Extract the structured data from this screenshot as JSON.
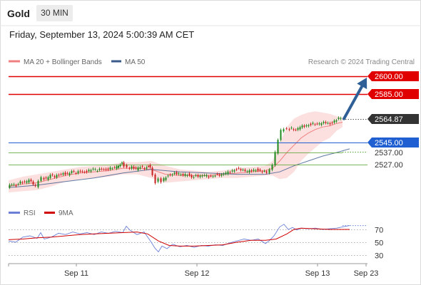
{
  "header": {
    "title": "Gold",
    "timeframe": "30 MIN",
    "datetime": "Friday, September 13, 2024 5:00:39 AM CET"
  },
  "legend": {
    "ma20": "MA 20 + Bollinger Bands",
    "ma50": "MA 50",
    "copyright": "Research © 2024 Trading Central",
    "colors": {
      "ma20": "#f08080",
      "ma50": "#3a5a8c"
    }
  },
  "rsi_legend": {
    "rsi": "RSI",
    "ma9": "9MA",
    "colors": {
      "rsi": "#6b7fd6",
      "ma9": "#d00000"
    }
  },
  "colors": {
    "resistance": "#e00000",
    "support": "#1f5fd1",
    "support_secondary": "#5aa632",
    "last_price": "#333333",
    "up_candle": "#1e8a1e",
    "down_candle": "#c81e1e",
    "bollinger_fill": "#fbd9d9",
    "arrow": "#2e5f96"
  },
  "chart_data": [
    {
      "type": "candlestick",
      "title": "Gold",
      "timeframe": "30 MIN",
      "x_ticks": [
        "Sep 11",
        "Sep 12",
        "Sep 13",
        "Sep 23"
      ],
      "y_range": [
        2505,
        2605
      ],
      "levels": [
        {
          "name": "resistance-2",
          "value": 2600.0,
          "label": "2600.00",
          "color": "#e00000"
        },
        {
          "name": "resistance-1",
          "value": 2585.0,
          "label": "2585.00",
          "color": "#e00000"
        },
        {
          "name": "last-price",
          "value": 2564.87,
          "label": "2564.87",
          "color": "#333333"
        },
        {
          "name": "pivot",
          "value": 2545.0,
          "label": "2545.00",
          "color": "#1f5fd1"
        },
        {
          "name": "support-1",
          "value": 2537.0,
          "label": "2537.00",
          "color": "#5aa632"
        },
        {
          "name": "support-2",
          "value": 2527.0,
          "label": "2527.00",
          "color": "#5aa632"
        }
      ],
      "price_path": [
        [
          0,
          2508
        ],
        [
          6,
          2511
        ],
        [
          12,
          2510
        ],
        [
          18,
          2513
        ],
        [
          24,
          2512
        ],
        [
          30,
          2514
        ],
        [
          36,
          2511
        ],
        [
          40,
          2509
        ],
        [
          44,
          2514
        ],
        [
          48,
          2516
        ],
        [
          54,
          2515
        ],
        [
          60,
          2518
        ],
        [
          66,
          2517
        ],
        [
          72,
          2519
        ],
        [
          78,
          2520
        ],
        [
          84,
          2519
        ],
        [
          90,
          2521
        ],
        [
          96,
          2520
        ],
        [
          102,
          2522
        ],
        [
          108,
          2521
        ],
        [
          114,
          2522
        ],
        [
          120,
          2523
        ],
        [
          126,
          2522
        ],
        [
          132,
          2524
        ],
        [
          138,
          2523
        ],
        [
          144,
          2524
        ],
        [
          150,
          2524
        ],
        [
          155,
          2526
        ],
        [
          160,
          2528
        ],
        [
          164,
          2526
        ],
        [
          168,
          2524
        ],
        [
          174,
          2525
        ],
        [
          180,
          2523
        ],
        [
          186,
          2525
        ],
        [
          192,
          2524
        ],
        [
          197,
          2526
        ],
        [
          200,
          2524
        ],
        [
          204,
          2518
        ],
        [
          208,
          2512
        ],
        [
          212,
          2515
        ],
        [
          216,
          2513
        ],
        [
          222,
          2517
        ],
        [
          228,
          2519
        ],
        [
          234,
          2520
        ],
        [
          240,
          2519
        ],
        [
          246,
          2518
        ],
        [
          252,
          2519
        ],
        [
          258,
          2517
        ],
        [
          264,
          2518
        ],
        [
          270,
          2517
        ],
        [
          276,
          2518
        ],
        [
          282,
          2517
        ],
        [
          288,
          2518
        ],
        [
          294,
          2519
        ],
        [
          300,
          2518
        ],
        [
          306,
          2520
        ],
        [
          312,
          2521
        ],
        [
          318,
          2523
        ],
        [
          324,
          2524
        ],
        [
          330,
          2522
        ],
        [
          336,
          2521
        ],
        [
          342,
          2522
        ],
        [
          348,
          2523
        ],
        [
          354,
          2522
        ],
        [
          360,
          2521
        ],
        [
          364,
          2520
        ],
        [
          368,
          2523
        ],
        [
          372,
          2527
        ],
        [
          376,
          2537
        ],
        [
          380,
          2548
        ],
        [
          384,
          2555
        ],
        [
          388,
          2557
        ],
        [
          392,
          2556
        ],
        [
          398,
          2557
        ],
        [
          404,
          2555
        ],
        [
          410,
          2558
        ],
        [
          416,
          2559
        ],
        [
          422,
          2560
        ],
        [
          428,
          2561
        ],
        [
          434,
          2560
        ],
        [
          440,
          2561
        ],
        [
          446,
          2562
        ],
        [
          452,
          2561
        ],
        [
          458,
          2563
        ],
        [
          464,
          2565
        ],
        [
          468,
          2564.87
        ]
      ],
      "ma20_path": [
        [
          0,
          2509
        ],
        [
          20,
          2511
        ],
        [
          40,
          2512
        ],
        [
          60,
          2515
        ],
        [
          80,
          2518
        ],
        [
          100,
          2520
        ],
        [
          120,
          2521
        ],
        [
          140,
          2522
        ],
        [
          160,
          2524
        ],
        [
          180,
          2524
        ],
        [
          200,
          2523
        ],
        [
          220,
          2519
        ],
        [
          240,
          2518
        ],
        [
          260,
          2518
        ],
        [
          280,
          2518
        ],
        [
          300,
          2519
        ],
        [
          320,
          2520
        ],
        [
          340,
          2521
        ],
        [
          360,
          2522
        ],
        [
          370,
          2524
        ],
        [
          380,
          2530
        ],
        [
          390,
          2537
        ],
        [
          400,
          2543
        ],
        [
          410,
          2549
        ],
        [
          420,
          2553
        ],
        [
          430,
          2556
        ],
        [
          440,
          2558
        ],
        [
          450,
          2559
        ],
        [
          460,
          2561
        ],
        [
          468,
          2562
        ]
      ],
      "bb_upper": [
        [
          0,
          2514
        ],
        [
          20,
          2517
        ],
        [
          40,
          2519
        ],
        [
          60,
          2521
        ],
        [
          80,
          2523
        ],
        [
          100,
          2525
        ],
        [
          120,
          2526
        ],
        [
          140,
          2527
        ],
        [
          160,
          2529
        ],
        [
          180,
          2529
        ],
        [
          200,
          2530
        ],
        [
          220,
          2526
        ],
        [
          240,
          2523
        ],
        [
          260,
          2522
        ],
        [
          280,
          2521
        ],
        [
          300,
          2522
        ],
        [
          320,
          2524
        ],
        [
          340,
          2525
        ],
        [
          360,
          2526
        ],
        [
          370,
          2530
        ],
        [
          380,
          2545
        ],
        [
          390,
          2558
        ],
        [
          400,
          2565
        ],
        [
          410,
          2568
        ],
        [
          420,
          2570
        ],
        [
          430,
          2571
        ],
        [
          440,
          2570
        ],
        [
          450,
          2569
        ],
        [
          460,
          2567
        ],
        [
          468,
          2566
        ]
      ],
      "bb_lower": [
        [
          0,
          2504
        ],
        [
          20,
          2505
        ],
        [
          40,
          2506
        ],
        [
          60,
          2509
        ],
        [
          80,
          2513
        ],
        [
          100,
          2515
        ],
        [
          120,
          2516
        ],
        [
          140,
          2517
        ],
        [
          160,
          2519
        ],
        [
          180,
          2519
        ],
        [
          200,
          2516
        ],
        [
          220,
          2512
        ],
        [
          240,
          2513
        ],
        [
          260,
          2514
        ],
        [
          280,
          2515
        ],
        [
          300,
          2516
        ],
        [
          320,
          2516
        ],
        [
          340,
          2517
        ],
        [
          360,
          2518
        ],
        [
          370,
          2518
        ],
        [
          380,
          2515
        ],
        [
          390,
          2516
        ],
        [
          400,
          2521
        ],
        [
          410,
          2530
        ],
        [
          420,
          2536
        ],
        [
          430,
          2541
        ],
        [
          440,
          2546
        ],
        [
          450,
          2549
        ],
        [
          460,
          2555
        ],
        [
          468,
          2558
        ]
      ],
      "ma50_path": [
        [
          0,
          2508
        ],
        [
          40,
          2510
        ],
        [
          80,
          2513
        ],
        [
          120,
          2516
        ],
        [
          160,
          2520
        ],
        [
          200,
          2523
        ],
        [
          240,
          2521
        ],
        [
          280,
          2520
        ],
        [
          320,
          2519
        ],
        [
          360,
          2519
        ],
        [
          380,
          2521
        ],
        [
          400,
          2526
        ],
        [
          420,
          2530
        ],
        [
          440,
          2534
        ],
        [
          460,
          2537
        ],
        [
          478,
          2540
        ]
      ],
      "projection_end": {
        "value": 2600.0
      }
    },
    {
      "type": "line",
      "title": "RSI",
      "y_ticks": [
        70,
        50,
        30
      ],
      "y_range": [
        20,
        85
      ],
      "series": [
        {
          "name": "RSI",
          "color": "#6b7fd6",
          "values": [
            [
              0,
              52
            ],
            [
              10,
              50
            ],
            [
              20,
              58
            ],
            [
              30,
              60
            ],
            [
              40,
              56
            ],
            [
              45,
              65
            ],
            [
              50,
              55
            ],
            [
              60,
              58
            ],
            [
              70,
              64
            ],
            [
              80,
              62
            ],
            [
              90,
              66
            ],
            [
              100,
              63
            ],
            [
              110,
              65
            ],
            [
              120,
              62
            ],
            [
              130,
              66
            ],
            [
              140,
              64
            ],
            [
              150,
              67
            ],
            [
              160,
              65
            ],
            [
              165,
              75
            ],
            [
              170,
              69
            ],
            [
              180,
              62
            ],
            [
              190,
              66
            ],
            [
              200,
              50
            ],
            [
              205,
              41
            ],
            [
              210,
              35
            ],
            [
              215,
              44
            ],
            [
              222,
              40
            ],
            [
              230,
              47
            ],
            [
              240,
              43
            ],
            [
              250,
              45
            ],
            [
              260,
              42
            ],
            [
              270,
              45
            ],
            [
              280,
              44
            ],
            [
              290,
              46
            ],
            [
              300,
              45
            ],
            [
              310,
              49
            ],
            [
              320,
              52
            ],
            [
              330,
              55
            ],
            [
              340,
              53
            ],
            [
              350,
              55
            ],
            [
              360,
              48
            ],
            [
              365,
              52
            ],
            [
              372,
              60
            ],
            [
              380,
              74
            ],
            [
              386,
              78
            ],
            [
              392,
              70
            ],
            [
              398,
              73
            ],
            [
              404,
              69
            ],
            [
              410,
              72
            ],
            [
              420,
              71
            ],
            [
              430,
              72
            ],
            [
              440,
              70
            ],
            [
              450,
              71
            ],
            [
              460,
              72
            ],
            [
              468,
              74
            ],
            [
              478,
              76
            ]
          ]
        },
        {
          "name": "9MA",
          "color": "#d00000",
          "values": [
            [
              0,
              54
            ],
            [
              20,
              55
            ],
            [
              40,
              57
            ],
            [
              60,
              58
            ],
            [
              80,
              60
            ],
            [
              100,
              62
            ],
            [
              120,
              63
            ],
            [
              140,
              64
            ],
            [
              160,
              65
            ],
            [
              180,
              66
            ],
            [
              195,
              63
            ],
            [
              210,
              52
            ],
            [
              225,
              45
            ],
            [
              240,
              44
            ],
            [
              260,
              44
            ],
            [
              280,
              45
            ],
            [
              300,
              46
            ],
            [
              320,
              50
            ],
            [
              340,
              53
            ],
            [
              360,
              53
            ],
            [
              375,
              55
            ],
            [
              390,
              63
            ],
            [
              400,
              70
            ],
            [
              410,
              72
            ],
            [
              430,
              71
            ],
            [
              450,
              70
            ],
            [
              468,
              70
            ],
            [
              478,
              70
            ]
          ]
        }
      ]
    }
  ]
}
